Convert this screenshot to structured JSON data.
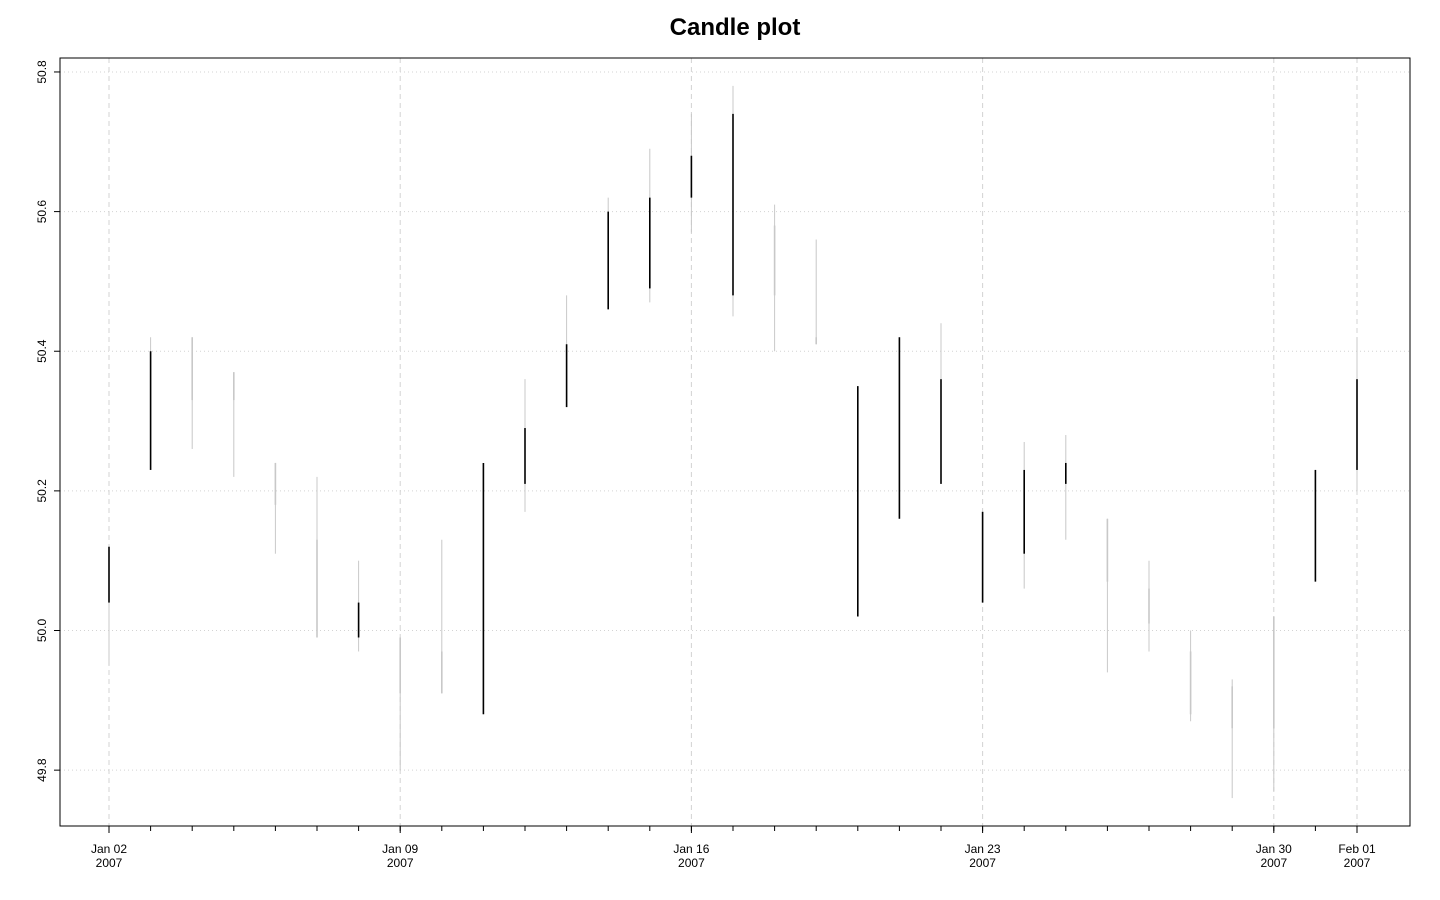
{
  "chart_data": {
    "type": "candlestick",
    "title": "Candle plot",
    "xlabel": "",
    "ylabel": "",
    "ylim": [
      49.72,
      50.82
    ],
    "grid": true,
    "y_ticks": [
      49.8,
      50.0,
      50.2,
      50.4,
      50.6,
      50.8
    ],
    "y_tick_labels": [
      "49.8",
      "50.0",
      "50.2",
      "50.4",
      "50.6",
      "50.8"
    ],
    "x_ticks": [
      {
        "day": "Jan 02",
        "year": "2007",
        "index": 0
      },
      {
        "day": "Jan 09",
        "year": "2007",
        "index": 7
      },
      {
        "day": "Jan 16",
        "year": "2007",
        "index": 14
      },
      {
        "day": "Jan 23",
        "year": "2007",
        "index": 21
      },
      {
        "day": "Jan 30",
        "year": "2007",
        "index": 28
      },
      {
        "day": "Feb 01",
        "year": "2007",
        "index": 30
      }
    ],
    "colors": {
      "up": "#000000",
      "down": "#c8c8c8",
      "grid": "#d3d3d3",
      "axis": "#000000"
    },
    "candles": [
      {
        "open": 50.04,
        "high": 50.12,
        "low": 49.95,
        "close": 50.12,
        "up": true
      },
      {
        "open": 50.23,
        "high": 50.42,
        "low": 50.23,
        "close": 50.4,
        "up": true
      },
      {
        "open": 50.42,
        "high": 50.42,
        "low": 50.26,
        "close": 50.33,
        "up": false
      },
      {
        "open": 50.37,
        "high": 50.37,
        "low": 50.22,
        "close": 50.33,
        "up": false
      },
      {
        "open": 50.24,
        "high": 50.24,
        "low": 50.11,
        "close": 50.18,
        "up": false
      },
      {
        "open": 50.13,
        "high": 50.22,
        "low": 49.99,
        "close": 49.99,
        "up": false
      },
      {
        "open": 49.99,
        "high": 50.1,
        "low": 49.97,
        "close": 50.04,
        "up": true
      },
      {
        "open": 49.99,
        "high": 49.99,
        "low": 49.8,
        "close": 49.91,
        "up": false
      },
      {
        "open": 49.97,
        "high": 50.13,
        "low": 49.91,
        "close": 49.91,
        "up": false
      },
      {
        "open": 49.88,
        "high": 50.24,
        "low": 49.88,
        "close": 50.24,
        "up": true
      },
      {
        "open": 50.21,
        "high": 50.36,
        "low": 50.17,
        "close": 50.29,
        "up": true
      },
      {
        "open": 50.32,
        "high": 50.48,
        "low": 50.32,
        "close": 50.41,
        "up": true
      },
      {
        "open": 50.46,
        "high": 50.62,
        "low": 50.46,
        "close": 50.6,
        "up": true
      },
      {
        "open": 50.49,
        "high": 50.69,
        "low": 50.47,
        "close": 50.62,
        "up": true
      },
      {
        "open": 50.62,
        "high": 50.74,
        "low": 50.57,
        "close": 50.68,
        "up": true
      },
      {
        "open": 50.48,
        "high": 50.78,
        "low": 50.45,
        "close": 50.74,
        "up": true
      },
      {
        "open": 50.58,
        "high": 50.61,
        "low": 50.4,
        "close": 50.48,
        "up": false
      },
      {
        "open": 50.42,
        "high": 50.56,
        "low": 50.41,
        "close": 50.41,
        "up": false
      },
      {
        "open": 50.02,
        "high": 50.35,
        "low": 50.02,
        "close": 50.35,
        "up": true
      },
      {
        "open": 50.16,
        "high": 50.42,
        "low": 50.16,
        "close": 50.42,
        "up": true
      },
      {
        "open": 50.21,
        "high": 50.44,
        "low": 50.21,
        "close": 50.36,
        "up": true
      },
      {
        "open": 50.04,
        "high": 50.17,
        "low": 50.04,
        "close": 50.17,
        "up": true
      },
      {
        "open": 50.11,
        "high": 50.27,
        "low": 50.06,
        "close": 50.23,
        "up": true
      },
      {
        "open": 50.21,
        "high": 50.28,
        "low": 50.13,
        "close": 50.24,
        "up": true
      },
      {
        "open": 50.16,
        "high": 50.16,
        "low": 49.94,
        "close": 50.07,
        "up": false
      },
      {
        "open": 50.06,
        "high": 50.1,
        "low": 49.97,
        "close": 50.01,
        "up": false
      },
      {
        "open": 49.97,
        "high": 50.0,
        "low": 49.87,
        "close": 49.88,
        "up": false
      },
      {
        "open": 49.92,
        "high": 49.93,
        "low": 49.76,
        "close": 49.86,
        "up": false
      },
      {
        "open": 50.02,
        "high": 50.02,
        "low": 49.77,
        "close": 49.86,
        "up": false
      },
      {
        "open": 50.07,
        "high": 50.23,
        "low": 50.07,
        "close": 50.23,
        "up": true
      },
      {
        "open": 50.23,
        "high": 50.42,
        "low": 50.2,
        "close": 50.36,
        "up": true
      }
    ]
  }
}
